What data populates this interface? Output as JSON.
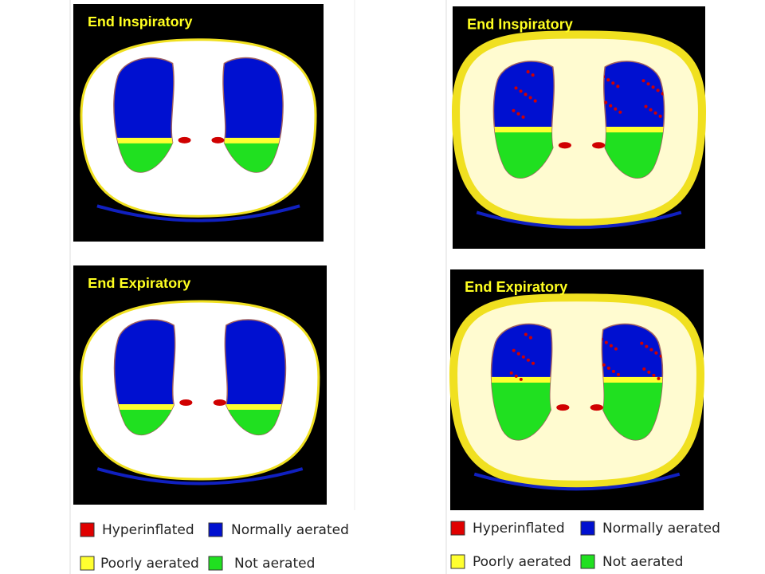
{
  "panels": [
    {
      "title": "End Inspiratory"
    },
    {
      "title": "End Expiratory"
    },
    {
      "title": "End Inspiratory"
    },
    {
      "title": "End Expiratory"
    }
  ],
  "legends": [
    {
      "items": [
        {
          "label": "Hyperinflated",
          "color": "#e00000"
        },
        {
          "label": "Normally aerated",
          "color": "#0010d0"
        },
        {
          "label": "Poorly aerated",
          "color": "#ffff30"
        },
        {
          "label": "Not aerated",
          "color": "#20e020"
        }
      ]
    },
    {
      "items": [
        {
          "label": "Hyperinflated",
          "color": "#e00000"
        },
        {
          "label": "Normally aerated",
          "color": "#0010d0"
        },
        {
          "label": "Poorly aerated",
          "color": "#ffff30"
        },
        {
          "label": "Not aerated",
          "color": "#20e020"
        }
      ]
    }
  ]
}
